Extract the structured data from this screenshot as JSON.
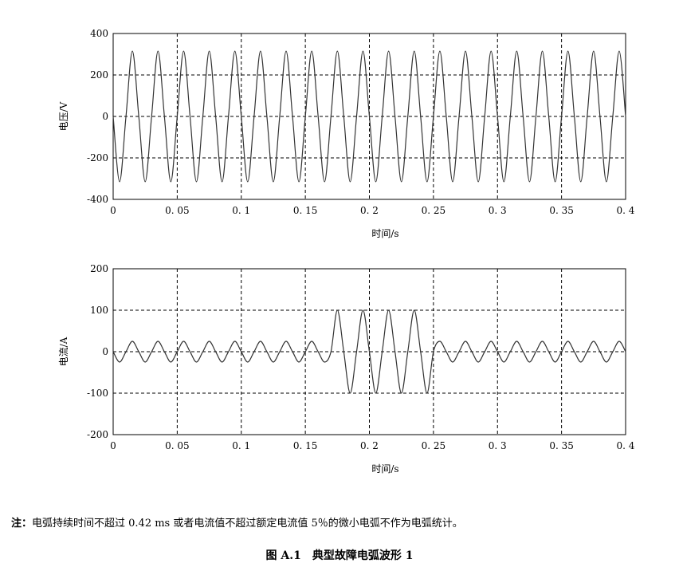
{
  "chart_data": [
    {
      "type": "line",
      "ylabel": "电压/V",
      "xlabel": "时间/s",
      "x": [
        0,
        0.005,
        0.01,
        0.015,
        0.02,
        0.025,
        0.03,
        0.035,
        0.04,
        0.045,
        0.05,
        0.055,
        0.06,
        0.065,
        0.07,
        0.075,
        0.08,
        0.085,
        0.09,
        0.095,
        0.1,
        0.105,
        0.11,
        0.115,
        0.12,
        0.125,
        0.13,
        0.135,
        0.14,
        0.145,
        0.15,
        0.155,
        0.16,
        0.165,
        0.17,
        0.175,
        0.18,
        0.185,
        0.19,
        0.195,
        0.2,
        0.205,
        0.21,
        0.215,
        0.22,
        0.225,
        0.23,
        0.235,
        0.24,
        0.245,
        0.25,
        0.255,
        0.26,
        0.265,
        0.27,
        0.275,
        0.28,
        0.285,
        0.29,
        0.295,
        0.3,
        0.305,
        0.31,
        0.315,
        0.32,
        0.325,
        0.33,
        0.335,
        0.34,
        0.345,
        0.35,
        0.355,
        0.36,
        0.365,
        0.37,
        0.375,
        0.38,
        0.385,
        0.39,
        0.395,
        0.4
      ],
      "values": [
        0,
        -315,
        0,
        315,
        0,
        -315,
        0,
        315,
        0,
        -315,
        0,
        315,
        0,
        -315,
        0,
        315,
        0,
        -315,
        0,
        315,
        0,
        -315,
        0,
        315,
        0,
        -315,
        0,
        315,
        0,
        -315,
        0,
        315,
        0,
        -315,
        0,
        315,
        0,
        -315,
        0,
        315,
        0,
        -315,
        0,
        315,
        0,
        -315,
        0,
        315,
        0,
        -315,
        0,
        315,
        0,
        -315,
        0,
        315,
        0,
        -315,
        0,
        315,
        0,
        -315,
        0,
        315,
        0,
        -315,
        0,
        315,
        0,
        -315,
        0,
        315,
        0,
        -315,
        0,
        315,
        0,
        -315,
        0,
        315,
        0
      ],
      "color": "#333333",
      "xlim": [
        0,
        0.4
      ],
      "ylim": [
        -400,
        400
      ],
      "xticks": [
        0,
        {
          "value": 0.05,
          "label": "0. 05"
        },
        {
          "value": 0.1,
          "label": "0. 1"
        },
        {
          "value": 0.15,
          "label": "0. 15"
        },
        {
          "value": 0.2,
          "label": "0. 2"
        },
        {
          "value": 0.25,
          "label": "0. 25"
        },
        {
          "value": 0.3,
          "label": "0. 3"
        },
        {
          "value": 0.35,
          "label": "0. 35"
        },
        {
          "value": 0.4,
          "label": "0. 4"
        }
      ],
      "yticks": [
        -400,
        -200,
        0,
        200,
        400
      ],
      "grid": true
    },
    {
      "type": "line",
      "ylabel": "电流/A",
      "xlabel": "时间/s",
      "x": [
        0,
        0.005,
        0.01,
        0.015,
        0.02,
        0.025,
        0.03,
        0.035,
        0.04,
        0.045,
        0.05,
        0.055,
        0.06,
        0.065,
        0.07,
        0.075,
        0.08,
        0.085,
        0.09,
        0.095,
        0.1,
        0.105,
        0.11,
        0.115,
        0.12,
        0.125,
        0.13,
        0.135,
        0.14,
        0.145,
        0.15,
        0.155,
        0.16,
        0.165,
        0.17,
        0.175,
        0.18,
        0.185,
        0.19,
        0.195,
        0.2,
        0.205,
        0.21,
        0.215,
        0.22,
        0.225,
        0.23,
        0.235,
        0.24,
        0.245,
        0.25,
        0.255,
        0.26,
        0.265,
        0.27,
        0.275,
        0.28,
        0.285,
        0.29,
        0.295,
        0.3,
        0.305,
        0.31,
        0.315,
        0.32,
        0.325,
        0.33,
        0.335,
        0.34,
        0.345,
        0.35,
        0.355,
        0.36,
        0.365,
        0.37,
        0.375,
        0.38,
        0.385,
        0.39,
        0.395,
        0.4
      ],
      "values": [
        0,
        -25,
        0,
        25,
        0,
        -25,
        0,
        25,
        0,
        -25,
        0,
        25,
        0,
        -25,
        0,
        25,
        0,
        -25,
        0,
        25,
        0,
        -25,
        0,
        25,
        0,
        -25,
        0,
        25,
        0,
        -25,
        0,
        25,
        0,
        -25,
        0,
        100,
        0,
        -100,
        0,
        100,
        0,
        -100,
        0,
        100,
        0,
        -100,
        0,
        100,
        0,
        -100,
        0,
        25,
        0,
        -25,
        0,
        25,
        0,
        -25,
        0,
        25,
        0,
        -25,
        0,
        25,
        0,
        -25,
        0,
        25,
        0,
        -25,
        0,
        25,
        0,
        -25,
        0,
        25,
        0,
        -25,
        0,
        25,
        0
      ],
      "color": "#333333",
      "xlim": [
        0,
        0.4
      ],
      "ylim": [
        -200,
        200
      ],
      "xticks": [
        0,
        {
          "value": 0.05,
          "label": "0. 05"
        },
        {
          "value": 0.1,
          "label": "0. 1"
        },
        {
          "value": 0.15,
          "label": "0. 15"
        },
        {
          "value": 0.2,
          "label": "0. 2"
        },
        {
          "value": 0.25,
          "label": "0. 25"
        },
        {
          "value": 0.3,
          "label": "0. 3"
        },
        {
          "value": 0.35,
          "label": "0. 35"
        },
        {
          "value": 0.4,
          "label": "0. 4"
        }
      ],
      "yticks": [
        -200,
        -100,
        0,
        100,
        200
      ],
      "grid": true
    }
  ],
  "note": {
    "label": "注：",
    "text": "电弧持续时间不超过 0.42 ms 或者电流值不超过额定电流值 5％的微小电弧不作为电弧统计。"
  },
  "caption": "图 A.1　典型故障电弧波形 1"
}
